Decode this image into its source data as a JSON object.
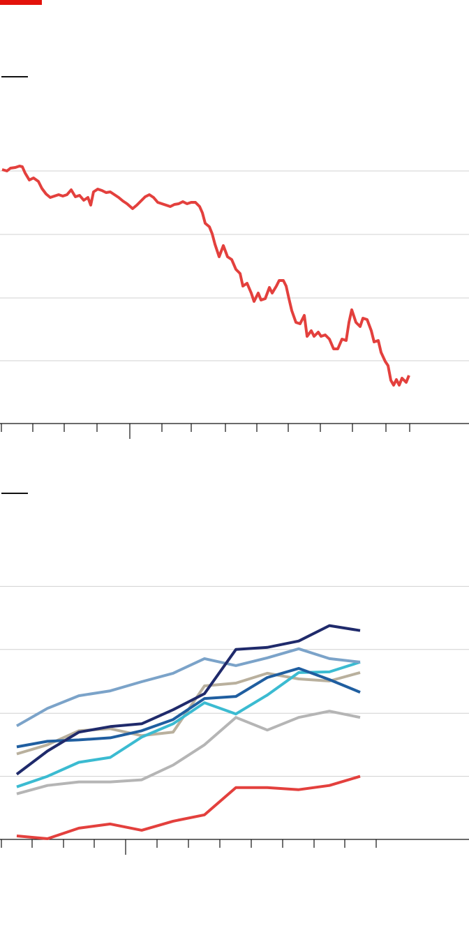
{
  "chart_data": [
    {
      "type": "line",
      "grid": true,
      "xlim": [
        0,
        670
      ],
      "xticks": [
        0,
        45,
        90,
        137,
        184,
        230,
        272,
        321,
        366,
        411,
        457,
        503,
        551,
        585
      ],
      "major_xticks": [
        184
      ],
      "ylim": [
        0,
        452
      ],
      "yticks": [
        0,
        90,
        180,
        271,
        362
      ],
      "x": [
        1,
        8,
        13,
        20,
        26,
        30,
        34,
        40,
        46,
        53,
        58,
        64,
        70,
        76,
        82,
        88,
        94,
        100,
        106,
        112,
        118,
        124,
        128,
        132,
        138,
        144,
        150,
        156,
        162,
        168,
        174,
        180,
        188,
        194,
        200,
        206,
        212,
        218,
        224,
        230,
        236,
        242,
        248,
        254,
        260,
        266,
        272,
        278,
        284,
        288,
        292,
        298,
        302,
        306,
        312,
        318,
        324,
        330,
        336,
        342,
        346,
        352,
        358,
        362,
        368,
        372,
        378,
        384,
        388,
        394,
        398,
        404,
        408,
        412,
        416,
        422,
        428,
        434,
        438,
        444,
        448,
        454,
        458,
        464,
        470,
        476,
        482,
        488,
        494,
        498,
        502,
        508,
        514,
        518,
        524,
        530,
        534,
        540,
        544,
        550,
        554,
        558,
        562,
        566,
        570,
        574,
        580,
        584
      ],
      "series": [
        {
          "color": "#e3403d",
          "values": [
            364,
            362,
            366,
            367,
            369,
            368,
            359,
            349,
            352,
            347,
            337,
            329,
            324,
            326,
            328,
            326,
            328,
            335,
            325,
            327,
            320,
            324,
            313,
            332,
            336,
            334,
            331,
            332,
            328,
            324,
            319,
            315,
            308,
            313,
            319,
            325,
            328,
            324,
            317,
            315,
            313,
            311,
            314,
            315,
            318,
            315,
            317,
            317,
            311,
            302,
            287,
            282,
            272,
            257,
            239,
            255,
            239,
            235,
            221,
            215,
            197,
            201,
            187,
            175,
            187,
            177,
            179,
            195,
            187,
            197,
            205,
            205,
            197,
            179,
            162,
            145,
            143,
            155,
            125,
            133,
            125,
            131,
            125,
            127,
            121,
            107,
            107,
            121,
            119,
            145,
            163,
            145,
            139,
            151,
            149,
            133,
            117,
            119,
            102,
            89,
            83,
            62,
            55,
            63,
            55,
            65,
            59,
            69
          ]
        }
      ]
    },
    {
      "type": "line",
      "grid": true,
      "xlim": [
        0,
        670
      ],
      "xticks": [
        0,
        44,
        89,
        133,
        178,
        223,
        268,
        313,
        358,
        403,
        448,
        492,
        537
      ],
      "major_xticks": [
        178
      ],
      "ylim": [
        0,
        450
      ],
      "yticks": [
        0,
        90,
        180,
        271,
        361
      ],
      "x": [
        22,
        66,
        111,
        156,
        201,
        246,
        291,
        336,
        381,
        426,
        470,
        514
      ],
      "series": [
        {
          "color": "#b5b5b5",
          "values": [
            65,
            77,
            82,
            82,
            85,
            106,
            135,
            174,
            156,
            174,
            183,
            174
          ]
        },
        {
          "color": "#b9b09d",
          "values": [
            122,
            135,
            155,
            158,
            148,
            153,
            219,
            223,
            237,
            229,
            226,
            238
          ]
        },
        {
          "color": "#3bbbd1",
          "values": [
            75,
            90,
            110,
            117,
            146,
            165,
            195,
            179,
            206,
            238,
            239,
            253
          ]
        },
        {
          "color": "#1f5ea0",
          "values": [
            132,
            140,
            142,
            145,
            155,
            171,
            201,
            204,
            231,
            244,
            228,
            210
          ]
        },
        {
          "color": "#7ba3c9",
          "values": [
            162,
            187,
            205,
            212,
            225,
            237,
            258,
            248,
            259,
            272,
            258,
            253
          ]
        },
        {
          "color": "#1f2a6b",
          "values": [
            93,
            126,
            153,
            161,
            165,
            185,
            208,
            271,
            274,
            283,
            305,
            298
          ]
        },
        {
          "color": "#e3403d",
          "values": [
            5,
            1,
            16,
            22,
            13,
            26,
            35,
            74,
            74,
            71,
            77,
            90
          ]
        }
      ]
    }
  ]
}
